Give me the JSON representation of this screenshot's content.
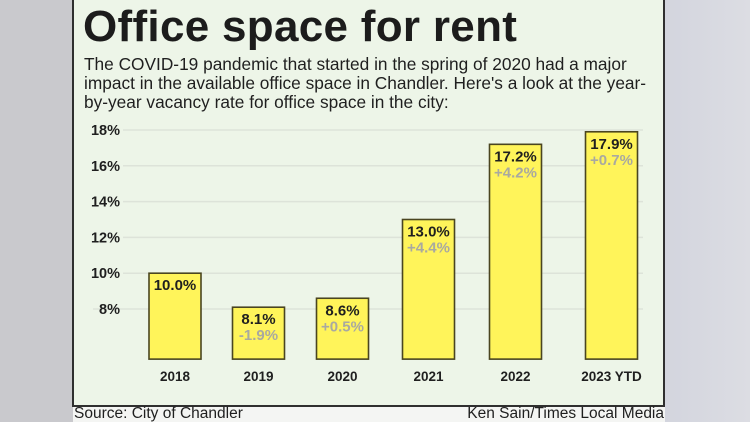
{
  "colors": {
    "bar_fill": "#fff45a",
    "bar_stroke": "#4a4520",
    "panel_bg": "#edf5e8",
    "gridline": "#dde3d9",
    "change_text": "#a9a9a0"
  },
  "header": {
    "title": "Office space for rent",
    "description_lines": [
      "The COVID-19 pandemic that started in the spring of 2020 had a major",
      "impact in the available office space in Chandler. Here's a look at the year-",
      "by-year vacancy rate for office space in the city:"
    ]
  },
  "footer": {
    "source": "Source: City of Chandler",
    "credit": "Ken Sain/Times Local Media"
  },
  "chart_data": {
    "type": "bar",
    "title": "Office space for rent",
    "xlabel": "",
    "ylabel": "",
    "categories": [
      "2018",
      "2019",
      "2020",
      "2021",
      "2022",
      "2023 YTD"
    ],
    "values": [
      10.0,
      8.1,
      8.6,
      13.0,
      17.2,
      17.9
    ],
    "value_labels": [
      "10.0%",
      "8.1%",
      "8.6%",
      "13.0%",
      "17.2%",
      "17.9%"
    ],
    "change_labels": [
      "",
      "-1.9%",
      "+0.5%",
      "+4.4%",
      "+4.2%",
      "+0.7%"
    ],
    "yticks": [
      8,
      10,
      12,
      14,
      16,
      18
    ],
    "ytick_labels": [
      "8%",
      "10%",
      "12%",
      "14%",
      "16%",
      "18%"
    ],
    "ylim": [
      5.2,
      18
    ],
    "grid": true,
    "legend": "none"
  }
}
